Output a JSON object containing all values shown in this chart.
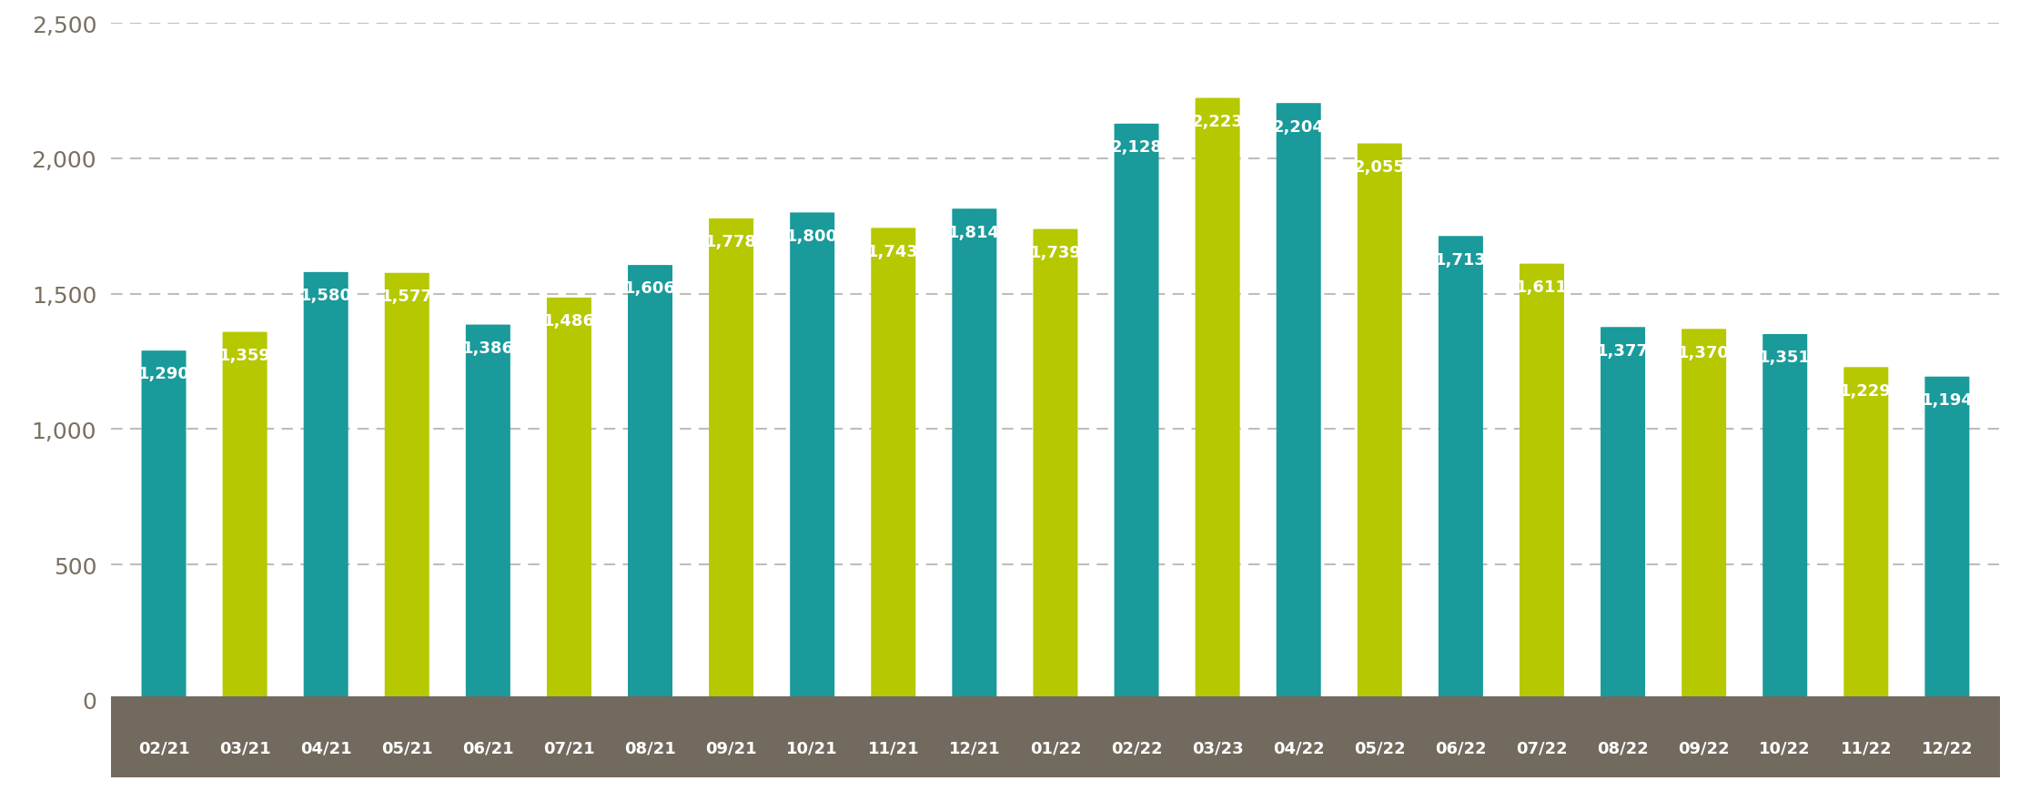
{
  "categories": [
    "02/21",
    "03/21",
    "04/21",
    "05/21",
    "06/21",
    "07/21",
    "08/21",
    "09/21",
    "10/21",
    "11/21",
    "12/21",
    "01/22",
    "02/22",
    "03/23",
    "04/22",
    "05/22",
    "06/22",
    "07/22",
    "08/22",
    "09/22",
    "10/22",
    "11/22",
    "12/22"
  ],
  "values": [
    1290,
    1359,
    1580,
    1577,
    1386,
    1486,
    1606,
    1778,
    1800,
    1743,
    1814,
    1739,
    2128,
    2223,
    2204,
    2055,
    1713,
    1611,
    1377,
    1370,
    1351,
    1229,
    1194
  ],
  "colors": [
    "#1a9a9a",
    "#b5c800",
    "#1a9a9a",
    "#b5c800",
    "#1a9a9a",
    "#b5c800",
    "#1a9a9a",
    "#b5c800",
    "#1a9a9a",
    "#b5c800",
    "#1a9a9a",
    "#b5c800",
    "#1a9a9a",
    "#b5c800",
    "#1a9a9a",
    "#b5c800",
    "#1a9a9a",
    "#b5c800",
    "#1a9a9a",
    "#b5c800",
    "#1a9a9a",
    "#b5c800",
    "#1a9a9a"
  ],
  "bg_color": "#ffffff",
  "xaxis_bg": "#726a5e",
  "xaxis_text_color": "#ffffff",
  "ytick_color": "#7a7060",
  "gridline_color": "#c0bdb8",
  "label_text_color": "#ffffff",
  "ylim": [
    0,
    2500
  ],
  "yticks": [
    0,
    500,
    1000,
    1500,
    2000,
    2500
  ],
  "bar_width": 0.55,
  "figsize": [
    22.2,
    8.7
  ],
  "dpi": 100,
  "label_fontsize": 13,
  "ytick_fontsize": 18,
  "xtick_fontsize": 13
}
